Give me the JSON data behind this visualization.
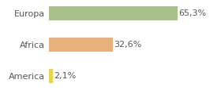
{
  "categories": [
    "America",
    "Africa",
    "Europa"
  ],
  "values": [
    2.1,
    32.6,
    65.3
  ],
  "labels": [
    "2,1%",
    "32,6%",
    "65,3%"
  ],
  "bar_colors": [
    "#e8d44d",
    "#e8b07a",
    "#a8c08a"
  ],
  "background_color": "#ffffff",
  "xlim": [
    0,
    85
  ],
  "bar_height": 0.45,
  "label_fontsize": 8,
  "tick_fontsize": 8,
  "grid_color": "#dddddd"
}
